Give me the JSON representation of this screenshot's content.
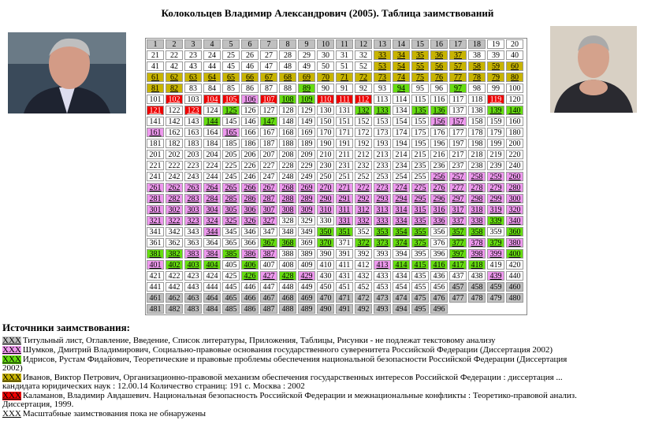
{
  "header": {
    "title": "Колокольцев Владимир Александрович (2005). Таблица заимствований"
  },
  "table": {
    "rows": [
      [
        1,
        2,
        3,
        4,
        5,
        6,
        7,
        8,
        9,
        10,
        11,
        12,
        13,
        14,
        15,
        16,
        17,
        18,
        19,
        20
      ],
      [
        21,
        22,
        23,
        24,
        25,
        26,
        27,
        28,
        29,
        30,
        31,
        32,
        33,
        34,
        35,
        36,
        37,
        38,
        39,
        40
      ],
      [
        41,
        42,
        43,
        44,
        45,
        46,
        47,
        48,
        49,
        50,
        51,
        52,
        53,
        54,
        55,
        56,
        57,
        58,
        59,
        60
      ],
      [
        61,
        62,
        63,
        64,
        65,
        66,
        67,
        68,
        69,
        70,
        71,
        72,
        73,
        74,
        75,
        76,
        77,
        78,
        79,
        80
      ],
      [
        81,
        82,
        83,
        84,
        85,
        86,
        87,
        88,
        89,
        90,
        91,
        92,
        93,
        94,
        95,
        96,
        97,
        98,
        99,
        100
      ],
      [
        101,
        102,
        103,
        104,
        105,
        106,
        107,
        108,
        109,
        110,
        111,
        112,
        113,
        114,
        115,
        116,
        117,
        118,
        119,
        120
      ],
      [
        121,
        122,
        123,
        124,
        125,
        126,
        127,
        128,
        129,
        130,
        131,
        132,
        133,
        134,
        135,
        136,
        137,
        138,
        139,
        140
      ],
      [
        141,
        142,
        143,
        144,
        145,
        146,
        147,
        148,
        149,
        150,
        151,
        152,
        153,
        154,
        155,
        156,
        157,
        158,
        159,
        160
      ],
      [
        161,
        162,
        163,
        164,
        165,
        166,
        167,
        168,
        169,
        170,
        171,
        172,
        173,
        174,
        175,
        176,
        177,
        178,
        179,
        180
      ],
      [
        181,
        182,
        183,
        184,
        185,
        186,
        187,
        188,
        189,
        190,
        191,
        192,
        193,
        194,
        195,
        196,
        197,
        198,
        199,
        200
      ],
      [
        201,
        202,
        203,
        204,
        205,
        206,
        207,
        208,
        209,
        210,
        211,
        212,
        213,
        214,
        215,
        216,
        217,
        218,
        219,
        220
      ],
      [
        221,
        222,
        223,
        224,
        225,
        226,
        227,
        228,
        229,
        230,
        231,
        232,
        233,
        234,
        235,
        236,
        237,
        238,
        239,
        240
      ],
      [
        241,
        242,
        243,
        244,
        245,
        246,
        247,
        248,
        249,
        250,
        251,
        252,
        253,
        254,
        255,
        256,
        257,
        258,
        259,
        260
      ],
      [
        261,
        262,
        263,
        264,
        265,
        266,
        267,
        268,
        269,
        270,
        271,
        272,
        273,
        274,
        275,
        276,
        277,
        278,
        279,
        280
      ],
      [
        281,
        282,
        283,
        284,
        285,
        286,
        287,
        288,
        289,
        290,
        291,
        292,
        293,
        294,
        295,
        296,
        297,
        298,
        299,
        300
      ],
      [
        301,
        302,
        303,
        304,
        305,
        306,
        307,
        308,
        309,
        310,
        311,
        312,
        313,
        314,
        315,
        316,
        317,
        318,
        319,
        320
      ],
      [
        321,
        322,
        323,
        324,
        325,
        326,
        327,
        328,
        329,
        330,
        331,
        332,
        333,
        334,
        335,
        336,
        337,
        338,
        339,
        340
      ],
      [
        341,
        342,
        343,
        344,
        345,
        346,
        347,
        348,
        349,
        350,
        351,
        352,
        353,
        354,
        355,
        356,
        357,
        358,
        359,
        360
      ],
      [
        361,
        362,
        363,
        364,
        365,
        366,
        367,
        368,
        369,
        370,
        371,
        372,
        373,
        374,
        375,
        376,
        377,
        378,
        379,
        380
      ],
      [
        381,
        382,
        383,
        384,
        385,
        386,
        387,
        388,
        389,
        390,
        391,
        392,
        393,
        394,
        395,
        396,
        397,
        398,
        399,
        400
      ],
      [
        401,
        402,
        403,
        404,
        405,
        406,
        407,
        408,
        409,
        410,
        411,
        412,
        413,
        414,
        415,
        416,
        417,
        418,
        419,
        420
      ],
      [
        421,
        422,
        423,
        424,
        425,
        426,
        427,
        428,
        429,
        430,
        431,
        432,
        433,
        434,
        435,
        436,
        437,
        438,
        439,
        440
      ],
      [
        441,
        442,
        443,
        444,
        445,
        446,
        447,
        448,
        449,
        450,
        451,
        452,
        453,
        454,
        455,
        456,
        457,
        458,
        459,
        460
      ],
      [
        461,
        462,
        463,
        464,
        465,
        466,
        467,
        468,
        469,
        470,
        471,
        472,
        473,
        474,
        475,
        476,
        477,
        478,
        479,
        480
      ],
      [
        481,
        482,
        483,
        484,
        485,
        486,
        487,
        488,
        489,
        490,
        491,
        492,
        493,
        494,
        495,
        496
      ]
    ],
    "colors": [
      "ggggggggggggggggggww",
      "wwwwwwwwwwwwyyyyywww",
      "wwwwwwwwwwwwyyyyyyyy",
      "yyyyyyyyyyyyyyyyyyyy",
      "yywwwwwwlwwwwlwwlwww",
      "wrwrrprllrrrwwwwwwrw",
      "rwrwlwwwwwwllwllwwll",
      "wwwlwwlwwwwwwwwppwww",
      "pwwwpwwwwwwwwwwwwwww",
      "wwwwwwwwwwwwwwwwwwww",
      "wwwwwwwwwwwwwwwwwwww",
      "wwwwwwwwwwwwwwwwwwww",
      "wwwwwwwwwwwwwwwppppp",
      "pppppppppppppppppppp",
      "pppppppppppppppppppp",
      "pppppppppppppppppppp",
      "pppppppwwwpppppppplp",
      "wwwpwwwwwllwlllwllwl",
      "wwwwwwllwlwllllwlplp",
      "llpplppwwwwwwwwwlppl",
      "plllwlwwwwwwplllllww",
      "wwwwwlplpwwwwwwwwwpw",
      "wwwwwwwwwwwwwwwwgggg",
      "gggggggggggggggggggg",
      "gggggggggggggggg"
    ]
  },
  "legend": {
    "heading": "Источники заимствования:",
    "entries": [
      {
        "mark": "XXX",
        "color": "g",
        "text": "Титульный лист, Оглавление, Введение, Список литературы, Приложения, Таблицы, Рисунки - не подлежат текстовому анализу"
      },
      {
        "mark": "XXX",
        "color": "p",
        "text": "Шумков, Дмитрий Владимирович, Социально-правовые основания государственного суверенитета Российской Федерации (Диссертация 2002)"
      },
      {
        "mark": "XXX",
        "color": "l",
        "text": "Идрисов, Рустам Фидайович, Теоретические и правовые проблемы обеспечения национальной безопасности Российской Федерации (Диссертация 2002)"
      },
      {
        "mark": "XXX",
        "color": "y",
        "text": "Иванов, Виктор Петрович, Организационно-правовой механизм обеспечения государственных интересов Российской Федерации : диссертация ... кандидата юридических наук : 12.00.14 Количество страниц: 191 с. Москва : 2002"
      },
      {
        "mark": "XXX",
        "color": "r",
        "text": "Каламанов, Владимир Авдашевич. Национальная безопасность Российской Федерации и межнациональные конфликты : Теоретико-правовой анализ. Диссертация, 1999."
      },
      {
        "mark": "XXX",
        "color": "w",
        "text": "Масштабные заимствования пока не обнаружены"
      }
    ]
  }
}
